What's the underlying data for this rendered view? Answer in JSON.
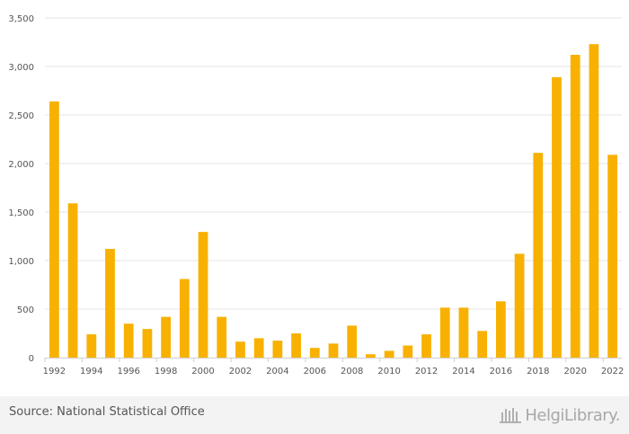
{
  "chart_data": {
    "type": "bar",
    "categories": [
      "1992",
      "1993",
      "1994",
      "1995",
      "1996",
      "1997",
      "1998",
      "1999",
      "2000",
      "2001",
      "2002",
      "2003",
      "2004",
      "2005",
      "2006",
      "2007",
      "2008",
      "2009",
      "2010",
      "2011",
      "2012",
      "2013",
      "2014",
      "2015",
      "2016",
      "2017",
      "2018",
      "2019",
      "2020",
      "2021",
      "2022"
    ],
    "values": [
      2640,
      1590,
      240,
      1120,
      350,
      295,
      420,
      810,
      1295,
      420,
      165,
      200,
      175,
      250,
      100,
      145,
      330,
      35,
      70,
      125,
      240,
      515,
      515,
      275,
      580,
      1070,
      2110,
      2890,
      3120,
      3230,
      2090
    ],
    "x_tick_labels": [
      "1992",
      "1994",
      "1996",
      "1998",
      "2000",
      "2002",
      "2004",
      "2006",
      "2008",
      "2010",
      "2012",
      "2014",
      "2016",
      "2018",
      "2020",
      "2022"
    ],
    "y_ticks": [
      0,
      500,
      1000,
      1500,
      2000,
      2500,
      3000,
      3500
    ],
    "y_tick_labels": [
      "0",
      "500",
      "1,000",
      "1,500",
      "2,000",
      "2,500",
      "3,000",
      "3,500"
    ],
    "ylim": [
      0,
      3500
    ],
    "grid": true,
    "bar_color": "#f8b100",
    "title": "",
    "xlabel": "",
    "ylabel": ""
  },
  "footer": {
    "source": "Source: National Statistical Office",
    "brand": "HelgiLibrary.",
    "brand_icon": "helgi-library-logo-icon"
  }
}
